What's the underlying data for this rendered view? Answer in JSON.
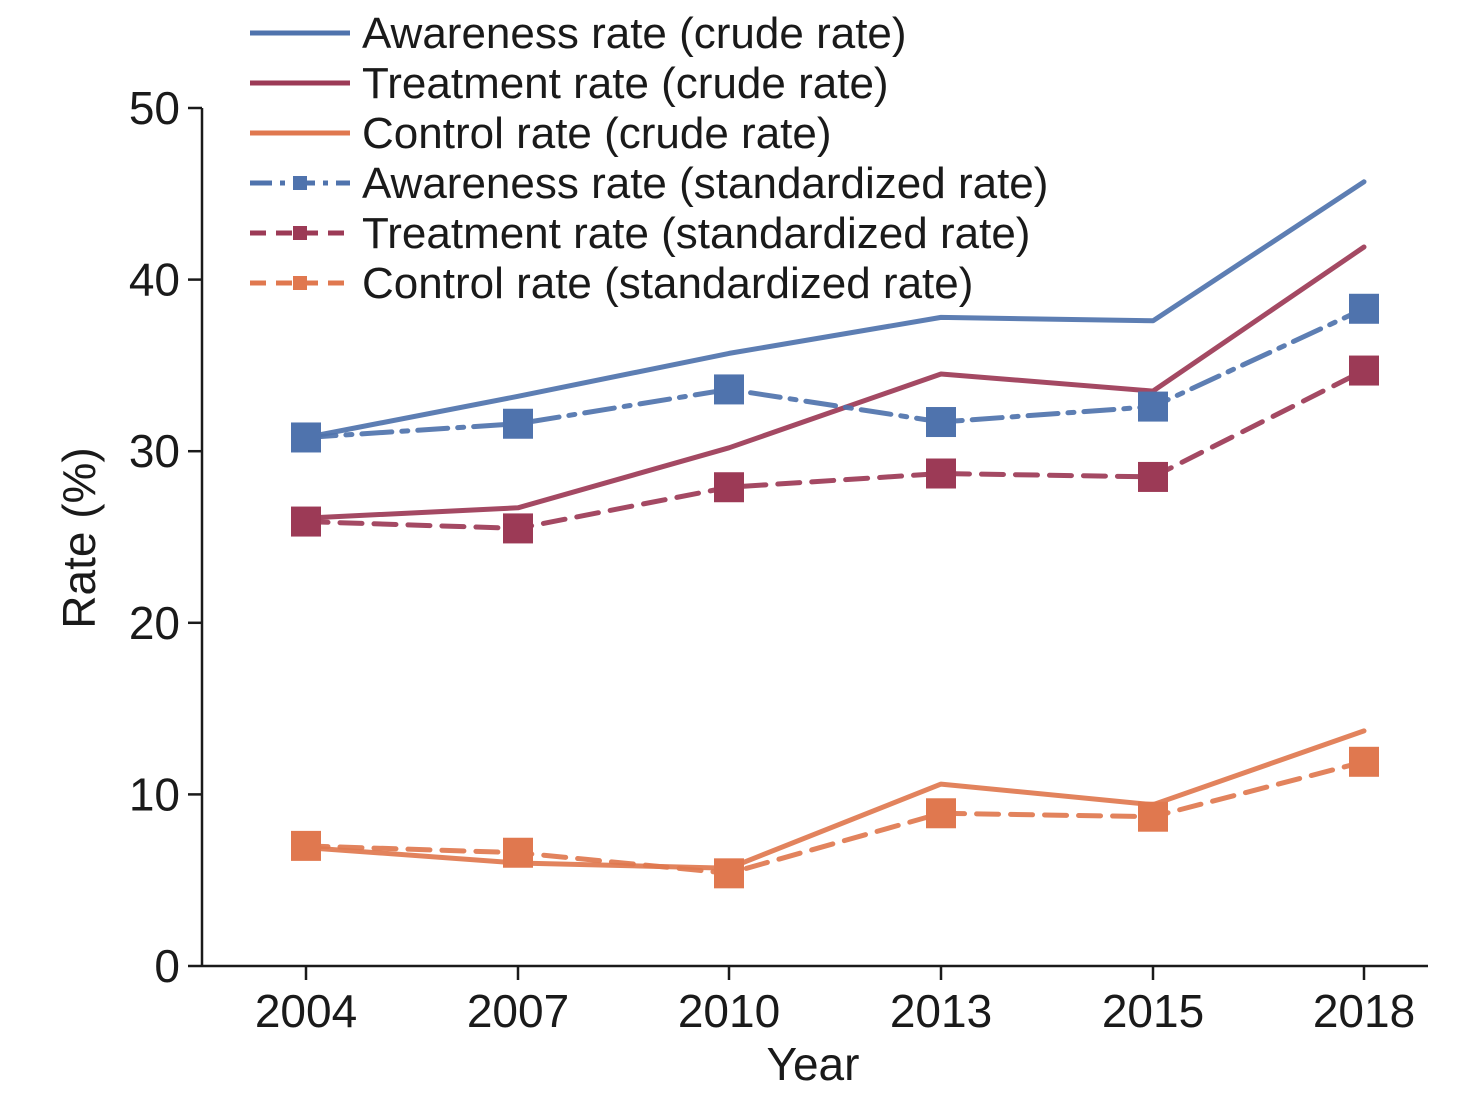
{
  "chart_data": {
    "type": "line",
    "title": "",
    "xlabel": "Year",
    "ylabel": "Rate (%)",
    "ylim": [
      0,
      50
    ],
    "yticks": [
      0,
      10,
      20,
      30,
      40,
      50
    ],
    "categories": [
      "2004",
      "2007",
      "2010",
      "2013",
      "2015",
      "2018"
    ],
    "legend_position": "top",
    "grid": false,
    "series": [
      {
        "name": "Awareness rate (crude rate)",
        "values": [
          30.8,
          33.2,
          35.7,
          37.8,
          37.6,
          45.7
        ],
        "color": "#4f73ad",
        "style": "solid",
        "marker": "none"
      },
      {
        "name": "Treatment rate (crude rate)",
        "values": [
          26.1,
          26.7,
          30.2,
          34.5,
          33.5,
          41.9
        ],
        "color": "#9c3a56",
        "style": "solid",
        "marker": "none"
      },
      {
        "name": "Control rate (crude rate)",
        "values": [
          6.9,
          6.0,
          5.7,
          10.6,
          9.4,
          13.7
        ],
        "color": "#e0784f",
        "style": "solid",
        "marker": "none"
      },
      {
        "name": "Awareness rate (standardized rate)",
        "values": [
          30.8,
          31.6,
          33.6,
          31.7,
          32.6,
          38.3
        ],
        "color": "#4f73ad",
        "style": "dashdot",
        "marker": "square"
      },
      {
        "name": "Treatment rate (standardized rate)",
        "values": [
          25.9,
          25.5,
          27.9,
          28.7,
          28.5,
          34.7
        ],
        "color": "#9c3a56",
        "style": "dashed",
        "marker": "square"
      },
      {
        "name": "Control rate (standardized rate)",
        "values": [
          7.0,
          6.6,
          5.4,
          8.9,
          8.7,
          11.9
        ],
        "color": "#e0784f",
        "style": "dashed",
        "marker": "square"
      }
    ]
  }
}
